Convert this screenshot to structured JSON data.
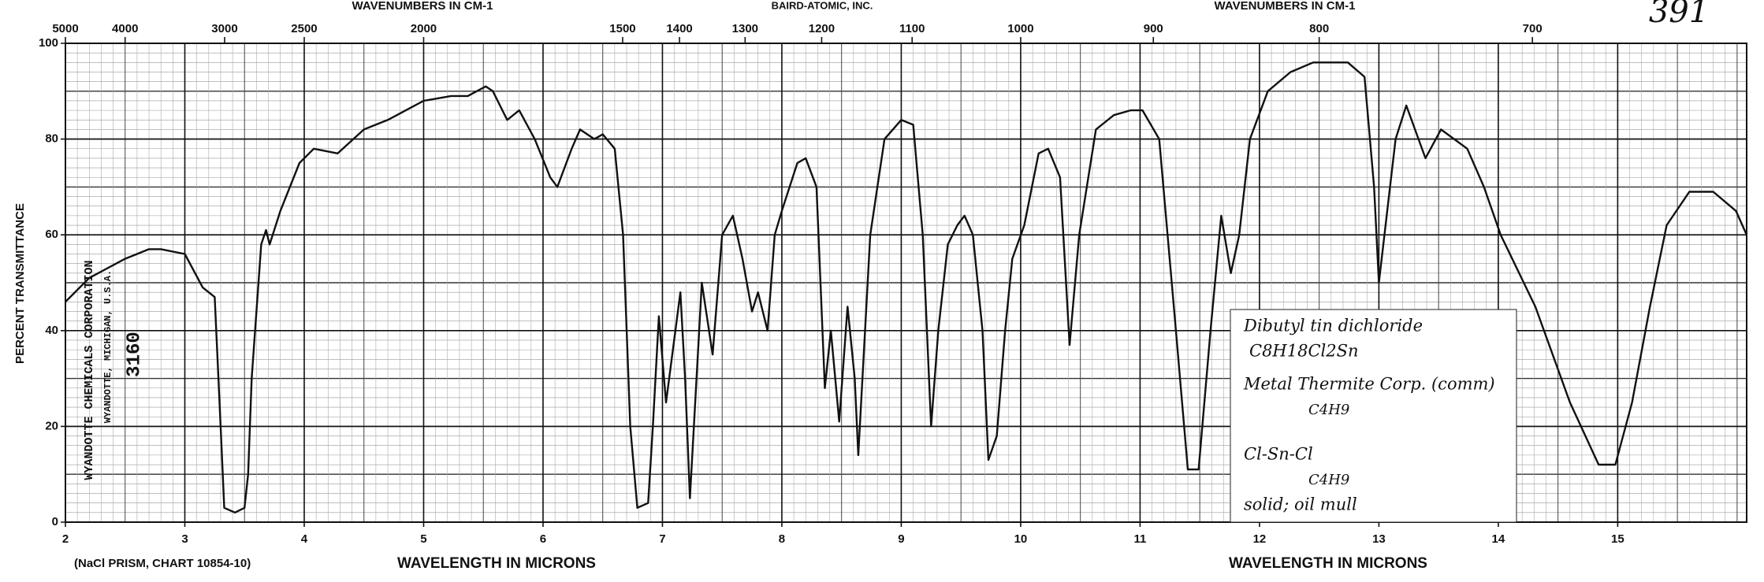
{
  "chart_data": {
    "type": "line",
    "header_left": "WAVENUMBERS IN CM-1",
    "header_center": "BAIRD-ATOMIC, INC.",
    "header_right": "WAVENUMBERS IN CM-1",
    "handwritten_number": "391",
    "y_label": "PERCENT TRANSMITTANCE",
    "x_label_left": "WAVELENGTH IN MICRONS",
    "x_label_right": "WAVELENGTH IN MICRONS",
    "footnote": "(NaCl PRISM, CHART 10854-10)",
    "stamp": [
      "WYANDOTTE CHEMICALS CORPORATION",
      "WYANDOTTE, MICHIGAN, U.S.A.",
      "3160"
    ],
    "annotation": [
      "Dibutyl tin dichloride",
      "C8H18Cl2Sn",
      "Metal Thermite Corp. (comm)",
      "C4H9",
      "Cl-Sn-Cl",
      "C4H9",
      "solid; oil mull"
    ],
    "xlim": [
      2,
      16.08
    ],
    "xticks": [
      2,
      3,
      4,
      5,
      6,
      7,
      8,
      9,
      10,
      11,
      12,
      13,
      14,
      15
    ],
    "x2ticks": [
      5000,
      4000,
      3000,
      2500,
      2000,
      1500,
      1400,
      1300,
      1200,
      1100,
      1000,
      900,
      800,
      700
    ],
    "ylim": [
      0,
      100
    ],
    "yticks": [
      0,
      20,
      40,
      60,
      80,
      100
    ],
    "grid": true,
    "color": "#111111",
    "x": [
      2.0,
      2.2,
      2.5,
      2.7,
      2.8,
      3.0,
      3.15,
      3.25,
      3.3,
      3.33,
      3.42,
      3.5,
      3.53,
      3.56,
      3.64,
      3.68,
      3.71,
      3.8,
      3.96,
      4.08,
      4.28,
      4.5,
      4.7,
      5.0,
      5.23,
      5.37,
      5.52,
      5.58,
      5.7,
      5.8,
      5.93,
      6.06,
      6.12,
      6.24,
      6.31,
      6.43,
      6.5,
      6.6,
      6.67,
      6.73,
      6.79,
      6.88,
      6.92,
      6.97,
      7.03,
      7.15,
      7.19,
      7.23,
      7.33,
      7.42,
      7.5,
      7.59,
      7.67,
      7.75,
      7.8,
      7.88,
      7.94,
      8.0,
      8.13,
      8.2,
      8.29,
      8.36,
      8.41,
      8.48,
      8.55,
      8.61,
      8.64,
      8.74,
      8.86,
      9.0,
      9.1,
      9.18,
      9.25,
      9.31,
      9.39,
      9.47,
      9.53,
      9.6,
      9.68,
      9.73,
      9.8,
      9.87,
      9.93,
      10.03,
      10.15,
      10.23,
      10.33,
      10.41,
      10.49,
      10.63,
      10.78,
      10.92,
      11.02,
      11.16,
      11.3,
      11.4,
      11.49,
      11.59,
      11.68,
      11.76,
      11.83,
      11.92,
      12.07,
      12.26,
      12.45,
      12.74,
      12.88,
      12.96,
      13.0,
      13.14,
      13.23,
      13.39,
      13.52,
      13.74,
      13.88,
      14.02,
      14.31,
      14.6,
      14.84,
      14.98,
      15.12,
      15.27,
      15.41,
      15.6,
      15.8,
      15.99,
      16.08
    ],
    "values": [
      46,
      51,
      55,
      57,
      57,
      56,
      49,
      47,
      20,
      3,
      2,
      3,
      10,
      30,
      58,
      61,
      58,
      65,
      75,
      78,
      77,
      82,
      84,
      88,
      89,
      89,
      91,
      90,
      84,
      86,
      80,
      72,
      70,
      78,
      82,
      80,
      81,
      78,
      60,
      20,
      3,
      4,
      20,
      43,
      25,
      48,
      30,
      5,
      50,
      35,
      60,
      64,
      55,
      44,
      48,
      40,
      60,
      65,
      75,
      76,
      70,
      28,
      40,
      21,
      45,
      30,
      14,
      60,
      80,
      84,
      83,
      60,
      20,
      40,
      58,
      62,
      64,
      60,
      40,
      13,
      18,
      40,
      55,
      62,
      77,
      78,
      72,
      37,
      60,
      82,
      85,
      86,
      86,
      80,
      40,
      11,
      11,
      40,
      64,
      52,
      60,
      80,
      90,
      94,
      96,
      96,
      93,
      70,
      50,
      80,
      87,
      76,
      82,
      78,
      70,
      60,
      45,
      25,
      12,
      12,
      25,
      45,
      62,
      69,
      69,
      65,
      60
    ]
  }
}
